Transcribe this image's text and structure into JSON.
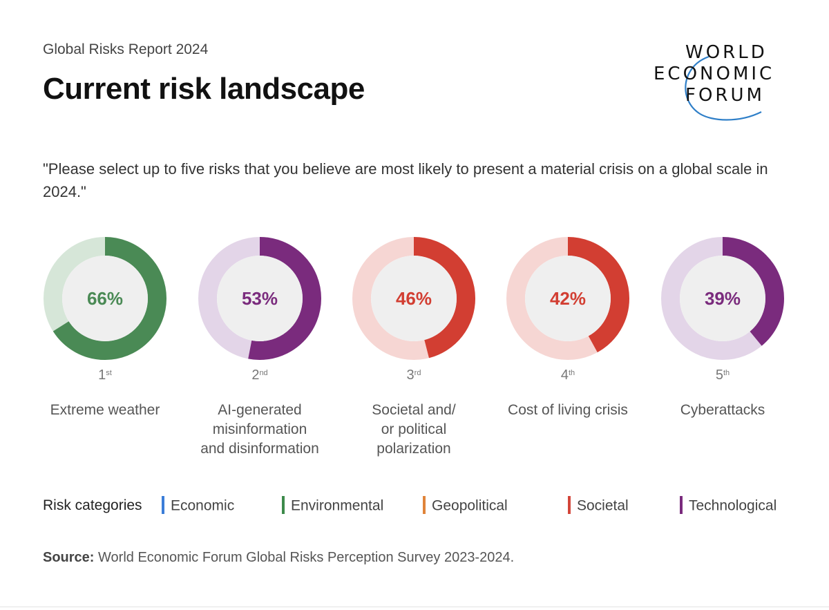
{
  "header": {
    "subtitle": "Global Risks Report 2024",
    "title": "Current risk landscape"
  },
  "logo": {
    "line1": "WORLD",
    "line2": "ECONOMIC",
    "line3": "FORUM"
  },
  "question": "\"Please select up to five risks that you believe are most likely to present a material crisis on a global scale in 2024.\"",
  "colors": {
    "Economic": "#3b7dd8",
    "Environmental": "#3d8a4b",
    "Geopolitical": "#e0843a",
    "Societal": "#d3453a",
    "Technological": "#7a2b7d"
  },
  "chart_data": {
    "type": "donut",
    "unit": "%",
    "items": [
      {
        "rank": "1",
        "rank_suffix": "st",
        "label_lines": [
          "Extreme weather"
        ],
        "value": 66,
        "value_label": "66%",
        "category": "Environmental",
        "color": "#4a8a55",
        "track_color": "#d6e6d8"
      },
      {
        "rank": "2",
        "rank_suffix": "nd",
        "label_lines": [
          "AI-generated",
          "misinformation",
          "and disinformation"
        ],
        "value": 53,
        "value_label": "53%",
        "category": "Technological",
        "color": "#7a2b7d",
        "track_color": "#e3d5e8"
      },
      {
        "rank": "3",
        "rank_suffix": "rd",
        "label_lines": [
          "Societal and/",
          "or political",
          "polarization"
        ],
        "value": 46,
        "value_label": "46%",
        "category": "Societal",
        "color": "#d23e32",
        "track_color": "#f6d6d3"
      },
      {
        "rank": "4",
        "rank_suffix": "th",
        "label_lines": [
          "Cost of living crisis"
        ],
        "value": 42,
        "value_label": "42%",
        "category": "Societal",
        "color": "#d23e32",
        "track_color": "#f6d6d3"
      },
      {
        "rank": "5",
        "rank_suffix": "th",
        "label_lines": [
          "Cyberattacks"
        ],
        "value": 39,
        "value_label": "39%",
        "category": "Technological",
        "color": "#7a2b7d",
        "track_color": "#e3d5e8"
      }
    ]
  },
  "legend": {
    "title": "Risk categories",
    "items": [
      {
        "label": "Economic",
        "color": "#3b7dd8"
      },
      {
        "label": "Environmental",
        "color": "#3d8a4b"
      },
      {
        "label": "Geopolitical",
        "color": "#e0843a"
      },
      {
        "label": "Societal",
        "color": "#d3453a"
      },
      {
        "label": "Technological",
        "color": "#7a2b7d"
      }
    ]
  },
  "source": {
    "label": "Source:",
    "text": " World Economic Forum Global Risks Perception Survey 2023-2024."
  }
}
